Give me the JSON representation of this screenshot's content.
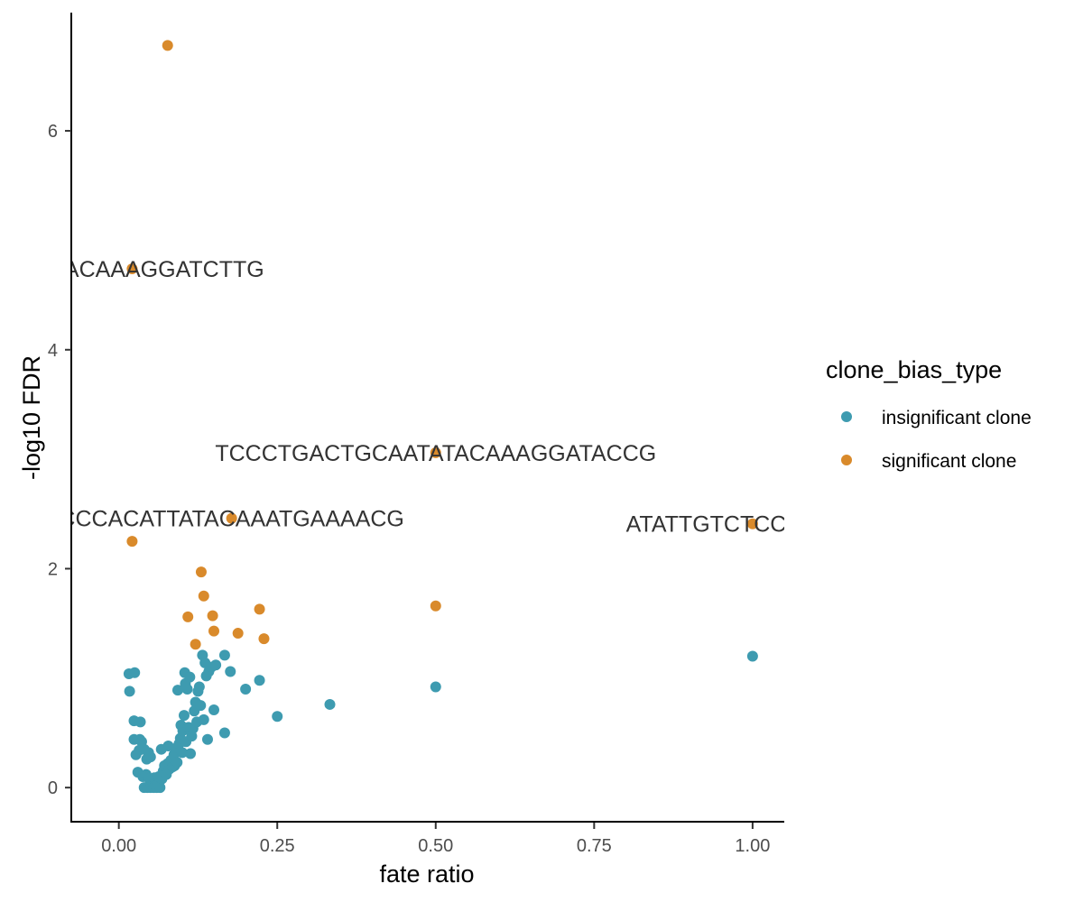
{
  "chart_data": {
    "type": "scatter",
    "title": "",
    "xlabel": "fate ratio",
    "ylabel": "-log10 FDR",
    "xlim": [
      -0.075,
      1.05
    ],
    "ylim": [
      -0.32,
      7.08
    ],
    "xticks": [
      0.0,
      0.25,
      0.5,
      0.75,
      1.0
    ],
    "xtick_labels": [
      "0.00",
      "0.25",
      "0.50",
      "0.75",
      "1.00"
    ],
    "yticks": [
      0,
      2,
      4,
      6
    ],
    "ytick_labels": [
      "0",
      "2",
      "4",
      "6"
    ],
    "grid": false,
    "legend": {
      "title": "clone_bias_type",
      "position": "right"
    },
    "series": [
      {
        "name": "insignificant clone",
        "color": "#3E9BB0",
        "points": [
          [
            0.016,
            1.04
          ],
          [
            0.017,
            0.88
          ],
          [
            0.025,
            1.05
          ],
          [
            0.024,
            0.61
          ],
          [
            0.024,
            0.44
          ],
          [
            0.027,
            0.3
          ],
          [
            0.03,
            0.14
          ],
          [
            0.033,
            0.44
          ],
          [
            0.034,
            0.6
          ],
          [
            0.032,
            0.34
          ],
          [
            0.036,
            0.42
          ],
          [
            0.038,
            0.1
          ],
          [
            0.04,
            0.35
          ],
          [
            0.04,
            0.0
          ],
          [
            0.043,
            0.12
          ],
          [
            0.044,
            0.26
          ],
          [
            0.045,
            0.0
          ],
          [
            0.047,
            0.32
          ],
          [
            0.048,
            0.08
          ],
          [
            0.05,
            0.28
          ],
          [
            0.05,
            0.0
          ],
          [
            0.053,
            0.05
          ],
          [
            0.055,
            0.0
          ],
          [
            0.056,
            0.09
          ],
          [
            0.058,
            0.02
          ],
          [
            0.06,
            0.0
          ],
          [
            0.062,
            0.03
          ],
          [
            0.063,
            0.1
          ],
          [
            0.065,
            0.0
          ],
          [
            0.067,
            0.35
          ],
          [
            0.068,
            0.08
          ],
          [
            0.07,
            0.15
          ],
          [
            0.072,
            0.2
          ],
          [
            0.075,
            0.12
          ],
          [
            0.077,
            0.22
          ],
          [
            0.078,
            0.38
          ],
          [
            0.08,
            0.17
          ],
          [
            0.082,
            0.25
          ],
          [
            0.085,
            0.19
          ],
          [
            0.087,
            0.3
          ],
          [
            0.088,
            0.2
          ],
          [
            0.09,
            0.36
          ],
          [
            0.092,
            0.23
          ],
          [
            0.093,
            0.89
          ],
          [
            0.095,
            0.4
          ],
          [
            0.097,
            0.45
          ],
          [
            0.098,
            0.57
          ],
          [
            0.1,
            0.32
          ],
          [
            0.101,
            0.52
          ],
          [
            0.103,
            0.66
          ],
          [
            0.104,
            1.05
          ],
          [
            0.105,
            0.95
          ],
          [
            0.106,
            0.42
          ],
          [
            0.108,
            0.9
          ],
          [
            0.11,
            0.55
          ],
          [
            0.112,
            1.01
          ],
          [
            0.113,
            0.31
          ],
          [
            0.115,
            0.47
          ],
          [
            0.117,
            0.54
          ],
          [
            0.119,
            0.7
          ],
          [
            0.121,
            0.78
          ],
          [
            0.123,
            0.6
          ],
          [
            0.125,
            0.88
          ],
          [
            0.127,
            0.92
          ],
          [
            0.129,
            0.75
          ],
          [
            0.132,
            1.21
          ],
          [
            0.134,
            0.62
          ],
          [
            0.136,
            1.14
          ],
          [
            0.138,
            1.02
          ],
          [
            0.14,
            0.44
          ],
          [
            0.142,
            1.06
          ],
          [
            0.146,
            1.1
          ],
          [
            0.15,
            0.71
          ],
          [
            0.153,
            1.12
          ],
          [
            0.167,
            0.5
          ],
          [
            0.167,
            1.21
          ],
          [
            0.176,
            1.06
          ],
          [
            0.2,
            0.9
          ],
          [
            0.222,
            0.98
          ],
          [
            0.25,
            0.65
          ],
          [
            0.333,
            0.76
          ],
          [
            0.5,
            0.92
          ],
          [
            1.0,
            1.2
          ]
        ]
      },
      {
        "name": "significant clone",
        "color": "#D98A2B",
        "points": [
          [
            0.077,
            6.78
          ],
          [
            0.021,
            4.74
          ],
          [
            0.021,
            2.25
          ],
          [
            0.178,
            2.46
          ],
          [
            0.5,
            3.06
          ],
          [
            1.0,
            2.41
          ],
          [
            0.13,
            1.97
          ],
          [
            0.134,
            1.75
          ],
          [
            0.109,
            1.56
          ],
          [
            0.148,
            1.57
          ],
          [
            0.15,
            1.43
          ],
          [
            0.121,
            1.31
          ],
          [
            0.188,
            1.41
          ],
          [
            0.222,
            1.63
          ],
          [
            0.229,
            1.36
          ],
          [
            0.5,
            1.66
          ]
        ]
      }
    ],
    "annotations": [
      {
        "text": "GAACACAAAGGATCTTG",
        "x": 0.021,
        "y": 4.74
      },
      {
        "text": "TCCCTGACTGCAATATACAAAGGATACCG",
        "x": 0.5,
        "y": 3.06
      },
      {
        "text": "CCCACATTATACAAATGAAAACG",
        "x": 0.178,
        "y": 2.46
      },
      {
        "text": "ATATTGTCTCCAGTTGA",
        "x": 1.0,
        "y": 2.41
      }
    ]
  }
}
